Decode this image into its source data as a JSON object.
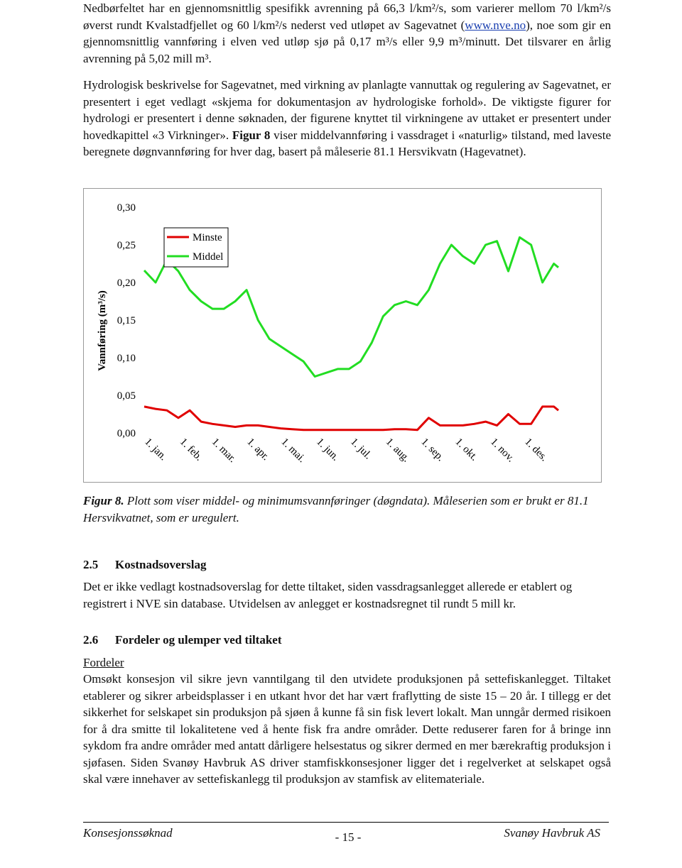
{
  "paragraphs": [
    [
      "Nedbørfeltet har en gjennomsnittlig spesifikk avrenning på 66,3 l/km²/s, som varierer mellom 70 l/km²/s øverst rundt Kvalstadfjellet og 60 l/km²/s nederst ved utløpet av Sagevatnet (",
      "www.nve.no",
      "), noe som gir en gjennomsnittlig vannføring i elven ved utløp sjø på 0,17 m³/s eller 9,9 m³/minutt. Det tilsvarer en årlig avrenning på 5,02 mill m³."
    ],
    [
      "Hydrologisk beskrivelse for Sagevatnet, med virkning av planlagte vannuttak og regulering av Sagevatnet, er presentert i eget vedlagt «skjema for dokumentasjon av hydrologiske forhold». De viktigste figurer for hydrologi er presentert i denne søknaden, der figurene knyttet til virkningene av uttaket er presentert under hovedkapittel «3 Virkninger». ",
      "Figur 8",
      " viser middelvannføring i vassdraget i «naturlig» tilstand, med laveste beregnete døgnvannføring for hver dag, basert på måleserie 81.1 Hersvikvatn (Hagevatnet)."
    ]
  ],
  "chart_data": {
    "type": "line",
    "y_label": "Vannføring (m³/s)",
    "x": [
      1,
      11,
      21,
      31,
      41,
      51,
      61,
      71,
      81,
      91,
      101,
      111,
      121,
      131,
      141,
      151,
      161,
      171,
      181,
      191,
      201,
      211,
      221,
      231,
      241,
      251,
      261,
      271,
      281,
      291,
      301,
      311,
      321,
      331,
      341,
      351,
      361,
      365
    ],
    "xlim": [
      1,
      365
    ],
    "xticks": [
      {
        "value": 1,
        "label": "1. jan."
      },
      {
        "value": 32,
        "label": "1. feb."
      },
      {
        "value": 60,
        "label": "1. mar."
      },
      {
        "value": 91,
        "label": "1. apr."
      },
      {
        "value": 121,
        "label": "1. mai."
      },
      {
        "value": 152,
        "label": "1. jun."
      },
      {
        "value": 182,
        "label": "1. jul."
      },
      {
        "value": 213,
        "label": "1. aug."
      },
      {
        "value": 244,
        "label": "1. sep."
      },
      {
        "value": 274,
        "label": "1. okt."
      },
      {
        "value": 305,
        "label": "1. nov."
      },
      {
        "value": 335,
        "label": "1. des."
      }
    ],
    "ylim": [
      0,
      0.3
    ],
    "yticks": [
      {
        "value": 0,
        "label": "0,00"
      },
      {
        "value": 0.05,
        "label": "0,05"
      },
      {
        "value": 0.1,
        "label": "0,10"
      },
      {
        "value": 0.15,
        "label": "0,15"
      },
      {
        "value": 0.2,
        "label": "0,20"
      },
      {
        "value": 0.25,
        "label": "0,25"
      },
      {
        "value": 0.3,
        "label": "0,30"
      }
    ],
    "grid": false,
    "series": [
      {
        "name": "Minste",
        "color": "#e00000",
        "values": [
          0.035,
          0.032,
          0.03,
          0.02,
          0.03,
          0.015,
          0.012,
          0.01,
          0.008,
          0.01,
          0.01,
          0.008,
          0.006,
          0.005,
          0.004,
          0.004,
          0.004,
          0.004,
          0.004,
          0.004,
          0.004,
          0.004,
          0.005,
          0.005,
          0.004,
          0.02,
          0.01,
          0.01,
          0.01,
          0.012,
          0.015,
          0.01,
          0.025,
          0.012,
          0.012,
          0.035,
          0.035,
          0.03
        ]
      },
      {
        "name": "Middel",
        "color": "#22dd22",
        "values": [
          0.216,
          0.2,
          0.23,
          0.215,
          0.19,
          0.175,
          0.165,
          0.165,
          0.175,
          0.19,
          0.15,
          0.125,
          0.115,
          0.105,
          0.095,
          0.075,
          0.08,
          0.085,
          0.085,
          0.095,
          0.12,
          0.155,
          0.17,
          0.175,
          0.17,
          0.19,
          0.225,
          0.25,
          0.235,
          0.225,
          0.25,
          0.255,
          0.215,
          0.26,
          0.25,
          0.2,
          0.225,
          0.22
        ]
      }
    ]
  },
  "caption": [
    "Figur 8.",
    " Plott som viser middel- og minimumsvannføringer (døgndata). Måleserien som er brukt er 81.1 Hersvikvatnet, som er uregulert."
  ],
  "sections": [
    {
      "number": "2.5",
      "title": "Kostnadsoverslag",
      "body": "Det er ikke vedlagt kostnadsoverslag for dette tiltaket, siden vassdragsanlegget allerede er etablert og registrert i NVE sin database. Utvidelsen av anlegget er kostnadsregnet til rundt 5 mill kr."
    },
    {
      "number": "2.6",
      "title": "Fordeler og ulemper ved tiltaket",
      "subheading": "Fordeler",
      "body": "Omsøkt konsesjon vil sikre jevn vanntilgang til den utvidete produksjonen på settefiskanlegget. Tiltaket etablerer og sikrer arbeidsplasser i en utkant hvor det har vært fraflytting de siste 15 – 20 år. I tillegg er det sikkerhet for selskapet sin produksjon på sjøen å kunne få sin fisk levert lokalt.  Man unngår dermed risikoen for å dra smitte til lokalitetene ved å hente fisk fra andre områder. Dette reduserer faren for å bringe inn sykdom fra andre områder med antatt dårligere helsestatus og sikrer dermed en mer bærekraftig produksjon i sjøfasen. Siden Svanøy Havbruk AS driver stamfiskkonsesjoner ligger det i regelverket at selskapet også skal være innehaver av settefiskanlegg til produksjon av stamfisk av elitemateriale."
    }
  ],
  "footer": {
    "left": "Konsesjonssøknad",
    "center": "- 15 -",
    "right": "Svanøy Havbruk AS"
  }
}
